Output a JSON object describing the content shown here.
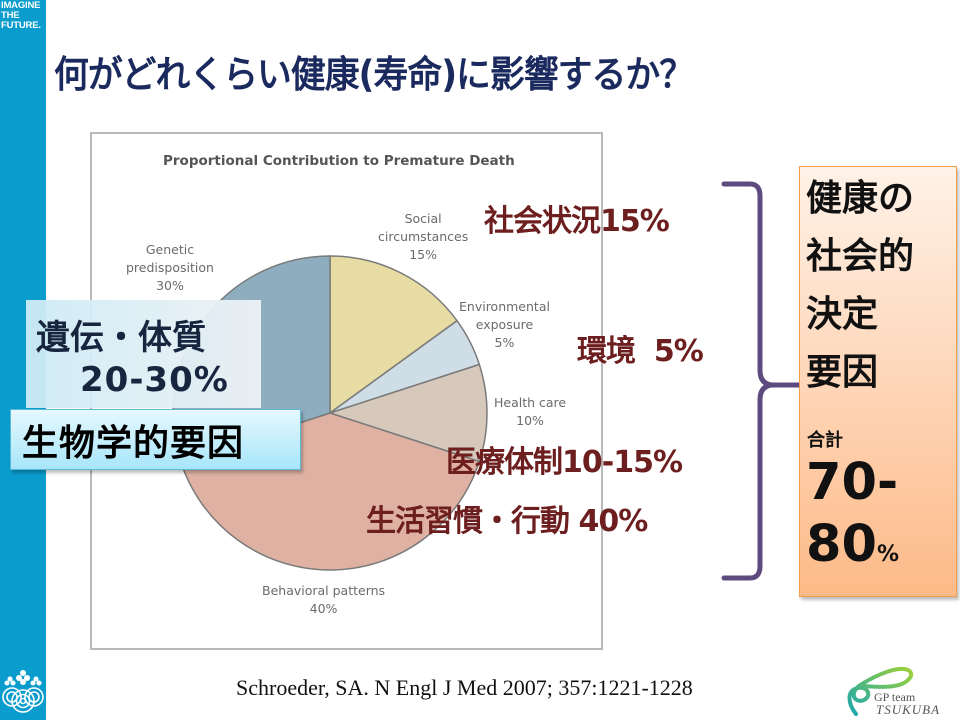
{
  "slide": {
    "title": "何がどれくらい健康(寿命)に影響するか？",
    "brand": [
      "IMAGINE",
      "THE",
      "FUTURE."
    ],
    "citation": "Schroeder, SA. N Engl J Med 2007; 357:1221-1228",
    "logo": {
      "line1": "GP team",
      "line2": "TSUKUBA"
    }
  },
  "chart_data": {
    "type": "pie",
    "title": "Proportional Contribution to Premature Death",
    "start_angle_deg": 0,
    "direction": "clockwise",
    "slices": [
      {
        "label": "Social circumstances",
        "label_lines": [
          "Social",
          "circumstances",
          "15%"
        ],
        "value": 15,
        "color": "#e6dca4"
      },
      {
        "label": "Environmental exposure",
        "label_lines": [
          "Environmental",
          "exposure",
          "5%"
        ],
        "value": 5,
        "color": "#cfdde7"
      },
      {
        "label": "Health care",
        "label_lines": [
          "Health care",
          "10%"
        ],
        "value": 10,
        "color": "#d6c8bb"
      },
      {
        "label": "Behavioral patterns",
        "label_lines": [
          "Behavioral patterns",
          "40%"
        ],
        "value": 40,
        "color": "#dfb1a3"
      },
      {
        "label": "Genetic predisposition",
        "label_lines": [
          "Genetic",
          "predisposition",
          "30%"
        ],
        "value": 30,
        "color": "#8eaec0"
      }
    ],
    "annotations_jp": [
      {
        "text": "社会状況15%"
      },
      {
        "text": "環境  5%"
      },
      {
        "text": "医療体制10-15%"
      },
      {
        "text": "生活習慣・行動 40%"
      }
    ]
  },
  "genetic": {
    "line1": "遺伝・体質",
    "line2": "20-30%",
    "category": "生物学的要因"
  },
  "sdh": {
    "title_lines": [
      "健康の",
      "社会的",
      "決定",
      "要因"
    ],
    "sum_label": "合計",
    "sum_value_line1": "70-",
    "sum_value_line2": "80",
    "sum_unit": "%"
  },
  "colors": {
    "sidebar": "#0a9ccd",
    "title": "#1b2a5e",
    "annotation": "#6d1e1e",
    "brace": "#5d4a7e",
    "sdh_border": "#f39c4a"
  }
}
